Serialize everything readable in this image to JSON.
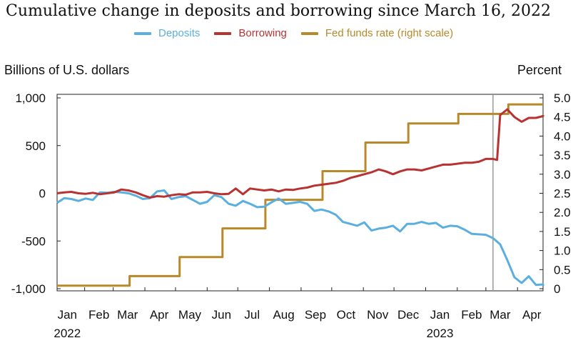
{
  "title": "Cumulative change in deposits and borrowing since March 16, 2022",
  "left_axis_unit": "Billions of U.S. dollars",
  "right_axis_unit": "Percent",
  "legend": [
    {
      "label": "Deposits",
      "color": "#5aafde"
    },
    {
      "label": "Borrowing",
      "color": "#b83232"
    },
    {
      "label": "Fed funds rate (right scale)",
      "color": "#b8892a"
    }
  ],
  "chart_data": {
    "type": "line",
    "title": "Cumulative change in deposits and borrowing since March 16, 2022",
    "xlabel": "",
    "ylabel": "Billions of U.S. dollars",
    "y2label": "Percent",
    "x_ticks": [
      "Jan",
      "Feb",
      "Mar",
      "Apr",
      "May",
      "Jun",
      "Jul",
      "Aug",
      "Sep",
      "Oct",
      "Nov",
      "Dec",
      "Jan",
      "Feb",
      "Mar",
      "Apr"
    ],
    "x_year_labels": [
      "2022",
      "2023"
    ],
    "x_range": [
      "2022-01-05",
      "2023-04-26"
    ],
    "ylim": [
      -1000,
      1000
    ],
    "y_ticks": [
      "1,000",
      "500",
      "0",
      "-500",
      "-1,000"
    ],
    "y_tick_values": [
      1000,
      500,
      0,
      -500,
      -1000
    ],
    "y2lim": [
      0,
      5.0
    ],
    "y2_ticks": [
      "5.0",
      "4.5",
      "4.0",
      "3.5",
      "3.0",
      "2.5",
      "2.0",
      "1.5",
      "1.0",
      "0.5",
      "0"
    ],
    "y2_tick_values": [
      5.0,
      4.5,
      4.0,
      3.5,
      3.0,
      2.5,
      2.0,
      1.5,
      1.0,
      0.5,
      0
    ],
    "vertical_marker_date": "2023-03-08",
    "grid": false,
    "series": [
      {
        "name": "Deposits",
        "axis": "left",
        "color": "#5aafde",
        "points": [
          [
            "2022-01-05",
            -100
          ],
          [
            "2022-01-12",
            -50
          ],
          [
            "2022-01-19",
            -60
          ],
          [
            "2022-01-26",
            -80
          ],
          [
            "2022-02-02",
            -55
          ],
          [
            "2022-02-09",
            -70
          ],
          [
            "2022-02-16",
            10
          ],
          [
            "2022-02-23",
            5
          ],
          [
            "2022-03-02",
            15
          ],
          [
            "2022-03-09",
            10
          ],
          [
            "2022-03-16",
            0
          ],
          [
            "2022-03-23",
            -25
          ],
          [
            "2022-03-30",
            -60
          ],
          [
            "2022-04-06",
            -50
          ],
          [
            "2022-04-13",
            20
          ],
          [
            "2022-04-20",
            30
          ],
          [
            "2022-04-27",
            -60
          ],
          [
            "2022-05-04",
            -40
          ],
          [
            "2022-05-11",
            -30
          ],
          [
            "2022-05-18",
            -70
          ],
          [
            "2022-05-25",
            -110
          ],
          [
            "2022-06-01",
            -90
          ],
          [
            "2022-06-08",
            -20
          ],
          [
            "2022-06-15",
            -40
          ],
          [
            "2022-06-22",
            -110
          ],
          [
            "2022-06-29",
            -130
          ],
          [
            "2022-07-06",
            -80
          ],
          [
            "2022-07-13",
            -110
          ],
          [
            "2022-07-20",
            -145
          ],
          [
            "2022-07-27",
            -140
          ],
          [
            "2022-08-03",
            -95
          ],
          [
            "2022-08-10",
            -55
          ],
          [
            "2022-08-17",
            -110
          ],
          [
            "2022-08-24",
            -100
          ],
          [
            "2022-08-31",
            -90
          ],
          [
            "2022-09-07",
            -110
          ],
          [
            "2022-09-14",
            -185
          ],
          [
            "2022-09-21",
            -170
          ],
          [
            "2022-09-28",
            -190
          ],
          [
            "2022-10-05",
            -225
          ],
          [
            "2022-10-12",
            -300
          ],
          [
            "2022-10-19",
            -320
          ],
          [
            "2022-10-26",
            -340
          ],
          [
            "2022-11-02",
            -305
          ],
          [
            "2022-11-09",
            -390
          ],
          [
            "2022-11-16",
            -370
          ],
          [
            "2022-11-23",
            -360
          ],
          [
            "2022-11-30",
            -340
          ],
          [
            "2022-12-07",
            -400
          ],
          [
            "2022-12-14",
            -320
          ],
          [
            "2022-12-21",
            -320
          ],
          [
            "2022-12-28",
            -300
          ],
          [
            "2023-01-04",
            -320
          ],
          [
            "2023-01-11",
            -310
          ],
          [
            "2023-01-18",
            -360
          ],
          [
            "2023-01-25",
            -340
          ],
          [
            "2023-02-01",
            -345
          ],
          [
            "2023-02-08",
            -380
          ],
          [
            "2023-02-15",
            -425
          ],
          [
            "2023-02-22",
            -430
          ],
          [
            "2023-03-01",
            -435
          ],
          [
            "2023-03-08",
            -470
          ],
          [
            "2023-03-15",
            -535
          ],
          [
            "2023-03-22",
            -700
          ],
          [
            "2023-03-29",
            -880
          ],
          [
            "2023-04-05",
            -940
          ],
          [
            "2023-04-12",
            -870
          ],
          [
            "2023-04-19",
            -960
          ],
          [
            "2023-04-26",
            -955
          ],
          [
            "2023-05-01",
            -970
          ]
        ]
      },
      {
        "name": "Borrowing",
        "axis": "left",
        "color": "#b83232",
        "points": [
          [
            "2022-01-05",
            0
          ],
          [
            "2022-01-12",
            10
          ],
          [
            "2022-01-19",
            15
          ],
          [
            "2022-01-26",
            0
          ],
          [
            "2022-02-02",
            -5
          ],
          [
            "2022-02-09",
            5
          ],
          [
            "2022-02-16",
            -10
          ],
          [
            "2022-02-23",
            0
          ],
          [
            "2022-03-02",
            10
          ],
          [
            "2022-03-09",
            40
          ],
          [
            "2022-03-16",
            30
          ],
          [
            "2022-03-23",
            10
          ],
          [
            "2022-03-30",
            -20
          ],
          [
            "2022-04-06",
            -45
          ],
          [
            "2022-04-13",
            -30
          ],
          [
            "2022-04-20",
            -35
          ],
          [
            "2022-04-27",
            -20
          ],
          [
            "2022-05-04",
            -10
          ],
          [
            "2022-05-11",
            -15
          ],
          [
            "2022-05-18",
            10
          ],
          [
            "2022-05-25",
            10
          ],
          [
            "2022-06-01",
            15
          ],
          [
            "2022-06-08",
            0
          ],
          [
            "2022-06-15",
            -10
          ],
          [
            "2022-06-22",
            -5
          ],
          [
            "2022-06-29",
            50
          ],
          [
            "2022-07-06",
            -10
          ],
          [
            "2022-07-13",
            50
          ],
          [
            "2022-07-20",
            40
          ],
          [
            "2022-07-27",
            30
          ],
          [
            "2022-08-03",
            40
          ],
          [
            "2022-08-10",
            20
          ],
          [
            "2022-08-17",
            40
          ],
          [
            "2022-08-24",
            35
          ],
          [
            "2022-08-31",
            50
          ],
          [
            "2022-09-07",
            60
          ],
          [
            "2022-09-14",
            80
          ],
          [
            "2022-09-21",
            90
          ],
          [
            "2022-09-28",
            100
          ],
          [
            "2022-10-05",
            110
          ],
          [
            "2022-10-12",
            130
          ],
          [
            "2022-10-19",
            160
          ],
          [
            "2022-10-26",
            180
          ],
          [
            "2022-11-02",
            200
          ],
          [
            "2022-11-09",
            220
          ],
          [
            "2022-11-16",
            250
          ],
          [
            "2022-11-23",
            230
          ],
          [
            "2022-11-30",
            200
          ],
          [
            "2022-12-07",
            230
          ],
          [
            "2022-12-14",
            250
          ],
          [
            "2022-12-21",
            250
          ],
          [
            "2022-12-28",
            240
          ],
          [
            "2023-01-04",
            260
          ],
          [
            "2023-01-11",
            280
          ],
          [
            "2023-01-18",
            300
          ],
          [
            "2023-01-25",
            300
          ],
          [
            "2023-02-01",
            310
          ],
          [
            "2023-02-08",
            320
          ],
          [
            "2023-02-15",
            320
          ],
          [
            "2023-02-22",
            330
          ],
          [
            "2023-03-01",
            360
          ],
          [
            "2023-03-08",
            360
          ],
          [
            "2023-03-12",
            350
          ],
          [
            "2023-03-15",
            820
          ],
          [
            "2023-03-22",
            880
          ],
          [
            "2023-03-29",
            800
          ],
          [
            "2023-04-05",
            750
          ],
          [
            "2023-04-12",
            790
          ],
          [
            "2023-04-19",
            790
          ],
          [
            "2023-04-26",
            810
          ],
          [
            "2023-05-01",
            820
          ]
        ]
      },
      {
        "name": "Fed funds rate (right scale)",
        "axis": "right",
        "color": "#b8892a",
        "step": true,
        "points": [
          [
            "2022-01-05",
            0.08
          ],
          [
            "2022-03-17",
            0.33
          ],
          [
            "2022-05-05",
            0.83
          ],
          [
            "2022-06-16",
            1.58
          ],
          [
            "2022-07-28",
            2.33
          ],
          [
            "2022-09-22",
            3.08
          ],
          [
            "2022-11-03",
            3.83
          ],
          [
            "2022-12-15",
            4.33
          ],
          [
            "2023-02-02",
            4.58
          ],
          [
            "2023-03-23",
            4.83
          ],
          [
            "2023-05-01",
            4.83
          ]
        ]
      }
    ]
  }
}
